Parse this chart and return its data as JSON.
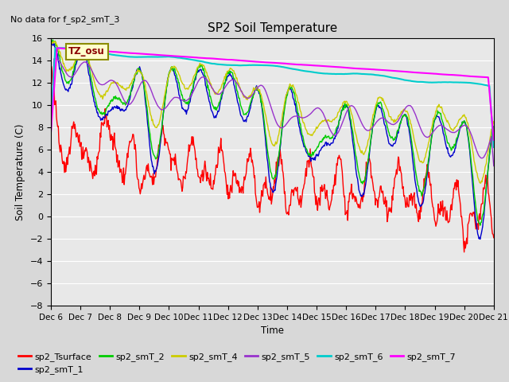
{
  "title": "SP2 Soil Temperature",
  "subtitle": "No data for f_sp2_smT_3",
  "xlabel": "Time",
  "ylabel": "Soil Temperature (C)",
  "ylim": [
    -8,
    16
  ],
  "yticks": [
    -8,
    -6,
    -4,
    -2,
    0,
    2,
    4,
    6,
    8,
    10,
    12,
    14,
    16
  ],
  "xtick_labels": [
    "Dec 6",
    "Dec 7",
    "Dec 8",
    "Dec 9",
    "Dec 10",
    "Dec 11",
    "Dec 12",
    "Dec 13",
    "Dec 14",
    "Dec 15",
    "Dec 16",
    "Dec 17",
    "Dec 18",
    "Dec 19",
    "Dec 20",
    "Dec 21"
  ],
  "annotation": "TZ_osu",
  "colors": {
    "sp2_Tsurface": "#FF0000",
    "sp2_smT_1": "#0000CC",
    "sp2_smT_2": "#00CC00",
    "sp2_smT_4": "#CCCC00",
    "sp2_smT_5": "#9933CC",
    "sp2_smT_6": "#00CCCC",
    "sp2_smT_7": "#FF00FF"
  },
  "plot_bg_color": "#E8E8E8",
  "fig_bg_color": "#D8D8D8"
}
